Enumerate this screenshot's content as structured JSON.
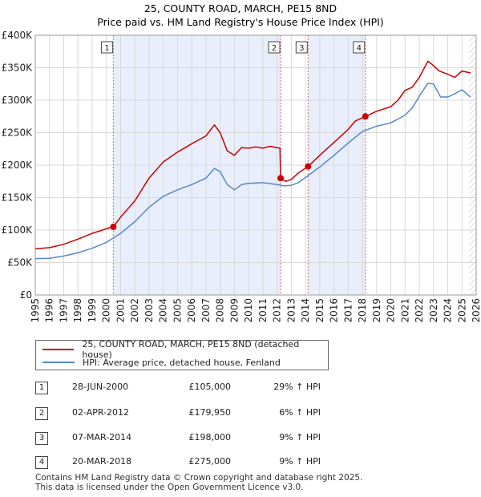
{
  "chart_data": {
    "type": "line",
    "title": "25, COUNTY ROAD, MARCH, PE15 8ND",
    "subtitle": "Price paid vs. HM Land Registry's House Price Index (HPI)",
    "xlim": [
      1995,
      2026
    ],
    "ylim": [
      0,
      400000
    ],
    "x_ticks": [
      1995,
      1996,
      1997,
      1998,
      1999,
      2000,
      2001,
      2002,
      2003,
      2004,
      2005,
      2006,
      2007,
      2008,
      2009,
      2010,
      2011,
      2012,
      2013,
      2014,
      2015,
      2016,
      2017,
      2018,
      2019,
      2020,
      2021,
      2022,
      2023,
      2024,
      2025,
      2026
    ],
    "y_ticks": [
      {
        "value": 0,
        "label": "£0"
      },
      {
        "value": 50000,
        "label": "£50K"
      },
      {
        "value": 100000,
        "label": "£100K"
      },
      {
        "value": 150000,
        "label": "£150K"
      },
      {
        "value": 200000,
        "label": "£200K"
      },
      {
        "value": 250000,
        "label": "£250K"
      },
      {
        "value": 300000,
        "label": "£300K"
      },
      {
        "value": 350000,
        "label": "£350K"
      },
      {
        "value": 400000,
        "label": "£400K"
      }
    ],
    "shaded_ranges": [
      [
        2000.49,
        2012.25
      ],
      [
        2014.18,
        2018.21
      ]
    ],
    "future_hatch_from": 2025.5,
    "series": [
      {
        "name": "25, COUNTY ROAD, MARCH, PE15 8ND (detached house)",
        "color": "#cc0000",
        "x": [
          1995,
          1996,
          1997,
          1998,
          1999,
          2000,
          2000.49,
          2001,
          2002,
          2003,
          2004,
          2005,
          2006,
          2007,
          2007.6,
          2008,
          2008.5,
          2009,
          2009.5,
          2010,
          2010.5,
          2011,
          2011.5,
          2012.2,
          2012.25,
          2012.6,
          2013,
          2013.5,
          2014.18,
          2015,
          2016,
          2017,
          2017.5,
          2018.21,
          2019,
          2020,
          2020.5,
          2021,
          2021.5,
          2022,
          2022.6,
          2022.9,
          2023.4,
          2024,
          2024.5,
          2025,
          2025.6
        ],
        "y": [
          71000,
          73000,
          78000,
          86000,
          95000,
          102000,
          105000,
          120000,
          145000,
          180000,
          205000,
          220000,
          233000,
          245000,
          262000,
          250000,
          222000,
          215000,
          227000,
          226000,
          228000,
          226000,
          229000,
          226000,
          179950,
          175000,
          178000,
          188000,
          198000,
          215000,
          235000,
          255000,
          268000,
          275000,
          283000,
          290000,
          300000,
          315000,
          320000,
          335000,
          360000,
          355000,
          345000,
          340000,
          335000,
          345000,
          342000
        ]
      },
      {
        "name": "HPI: Average price, detached house, Fenland",
        "color": "#5588cc",
        "x": [
          1995,
          1996,
          1997,
          1998,
          1999,
          2000,
          2001,
          2002,
          2003,
          2004,
          2005,
          2006,
          2007,
          2007.6,
          2008,
          2008.5,
          2009,
          2009.5,
          2010,
          2011,
          2012,
          2012.5,
          2013,
          2013.5,
          2014,
          2015,
          2016,
          2017,
          2018,
          2019,
          2020,
          2021,
          2021.5,
          2022,
          2022.6,
          2023,
          2023.5,
          2024,
          2024.5,
          2025,
          2025.6
        ],
        "y": [
          56000,
          56500,
          60000,
          65000,
          72000,
          81000,
          95000,
          113000,
          135000,
          152000,
          162000,
          170000,
          180000,
          195000,
          190000,
          170000,
          162000,
          170000,
          172000,
          173000,
          170000,
          168000,
          169000,
          173000,
          181000,
          197000,
          215000,
          234000,
          252000,
          260000,
          265000,
          277000,
          288000,
          306000,
          326000,
          325000,
          305000,
          305000,
          310000,
          316000,
          305000
        ]
      }
    ],
    "transactions": [
      {
        "id": "1",
        "x": 2000.49,
        "price": 105000,
        "date": "28-JUN-2000",
        "price_label": "£105,000",
        "hpi_label": "29% ↑ HPI"
      },
      {
        "id": "2",
        "x": 2012.25,
        "price": 179950,
        "date": "02-APR-2012",
        "price_label": "£179,950",
        "hpi_label": "6% ↑ HPI"
      },
      {
        "id": "3",
        "x": 2014.18,
        "price": 198000,
        "date": "07-MAR-2014",
        "price_label": "£198,000",
        "hpi_label": "9% ↑ HPI"
      },
      {
        "id": "4",
        "x": 2018.21,
        "price": 275000,
        "date": "20-MAR-2018",
        "price_label": "£275,000",
        "hpi_label": "9% ↑ HPI"
      }
    ]
  },
  "legend": {
    "property_label": "25, COUNTY ROAD, MARCH, PE15 8ND (detached house)",
    "hpi_label": "HPI: Average price, detached house, Fenland"
  },
  "footer": {
    "line1": "Contains HM Land Registry data © Crown copyright and database right 2025.",
    "line2": "This data is licensed under the Open Government Licence v3.0."
  }
}
